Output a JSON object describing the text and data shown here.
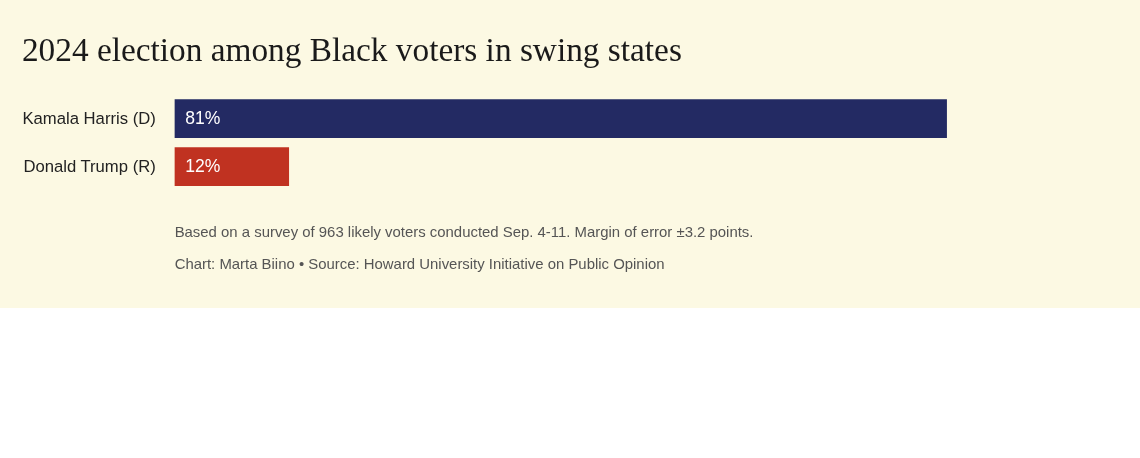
{
  "chart_data": {
    "type": "bar",
    "orientation": "horizontal",
    "title": "2024 election among Black voters in swing states",
    "categories": [
      "Kamala Harris (D)",
      "Donald Trump (R)"
    ],
    "values": [
      81,
      12
    ],
    "colors": [
      "#232a63",
      "#c03221"
    ],
    "data_labels": true,
    "value_labels": [
      "81%",
      "12%"
    ],
    "annotations": [
      "Based on a survey of 963 likely voters conducted Sep. 4-11. Margin of error ±3.2 points.",
      "Chart: Marta Biino • Source: Howard University Initiative on Public Opinion"
    ]
  }
}
